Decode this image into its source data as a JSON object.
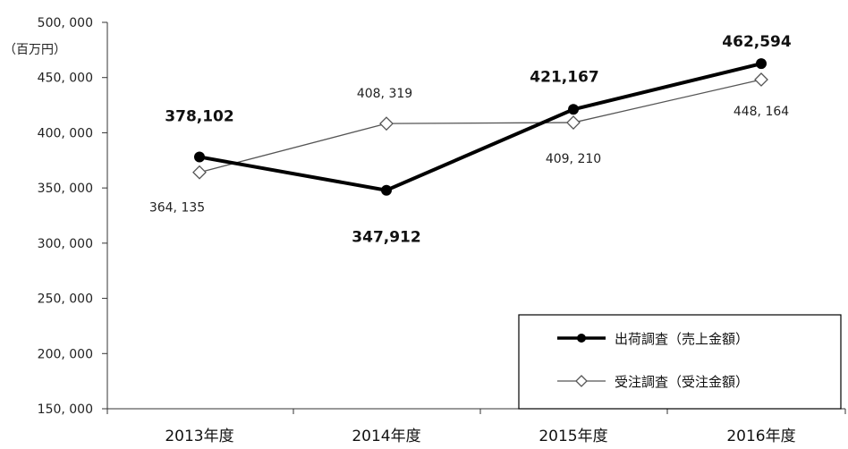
{
  "chart_data": {
    "type": "line",
    "unit_label": "（百万円）",
    "categories": [
      "2013年度",
      "2014年度",
      "2015年度",
      "2016年度"
    ],
    "ylim": [
      150000,
      500000
    ],
    "yticks": [
      150000,
      200000,
      250000,
      300000,
      350000,
      400000,
      450000,
      500000
    ],
    "ytick_labels": [
      "150, 000",
      "200, 000",
      "250, 000",
      "300, 000",
      "350, 000",
      "400, 000",
      "450, 000",
      "500, 000"
    ],
    "grid": false,
    "legend_position": "bottom-right",
    "series": [
      {
        "name": "出荷調査（売上金額）",
        "values": [
          378102,
          347912,
          421167,
          462594
        ],
        "labels": [
          "378,102",
          "347,912",
          "421,167",
          "462,594"
        ],
        "color": "#000000",
        "marker": "filled-circle"
      },
      {
        "name": "受注調査（受注金額）",
        "values": [
          364135,
          408319,
          409210,
          448164
        ],
        "labels": [
          "364, 135",
          "408, 319",
          "409, 210",
          "448, 164"
        ],
        "color": "#555555",
        "marker": "open-diamond"
      }
    ]
  }
}
